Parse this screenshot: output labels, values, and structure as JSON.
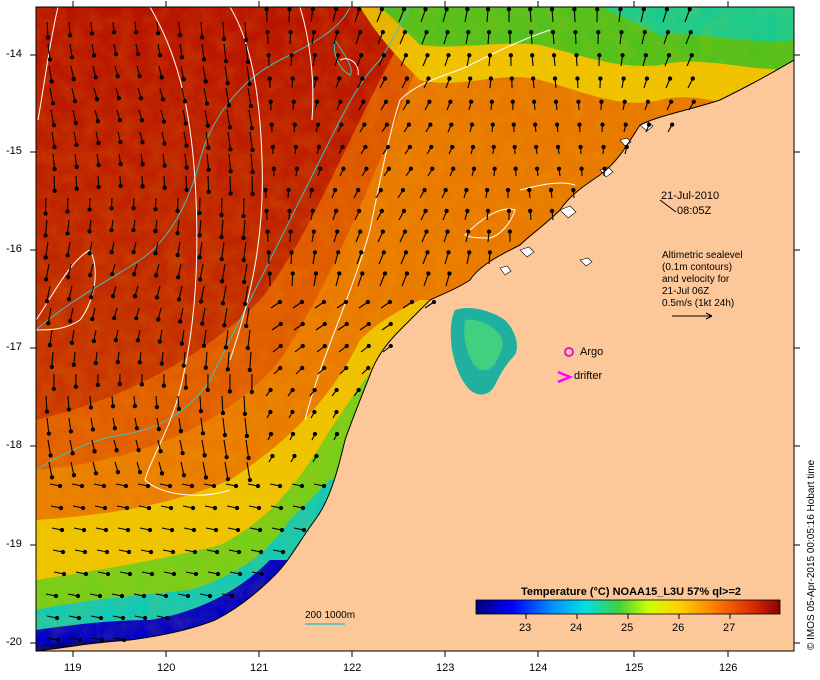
{
  "map": {
    "date_label": "21-Jul-2010",
    "time_label": "08:05Z",
    "altimetry_note": [
      "Altimetric sealevel",
      "(0.1m contours)",
      "and velocity for",
      "21-Jul 06Z",
      "0.5m/s (1kt 24h)"
    ],
    "argo_label": "Argo",
    "drifter_label": "drifter",
    "bathymetry_label": "200  1000m",
    "credit": "© IMOS 05-Apr-2015 00:05:16 Hobart time",
    "lat_ticks": [
      "-14",
      "-15",
      "-16",
      "-17",
      "-18",
      "-19",
      "-20"
    ],
    "lon_ticks": [
      "119",
      "120",
      "121",
      "122",
      "123",
      "124",
      "125",
      "126"
    ],
    "colors": {
      "land": "#fcc89a",
      "argo": "#d020d0",
      "drifter": "#ff00ff",
      "bathymetry": "#40c0c0",
      "contour": "#ffffff"
    }
  },
  "colorbar": {
    "title": "Temperature (°C) NOAA15_L3U 57% ql>=2",
    "ticks": [
      "23",
      "24",
      "25",
      "26",
      "27"
    ],
    "range": [
      22,
      28
    ],
    "stops": [
      "#00007a",
      "#0000ff",
      "#0090ff",
      "#00e0e0",
      "#40d040",
      "#d0ff00",
      "#ffd000",
      "#ff8000",
      "#e03000",
      "#900000"
    ]
  }
}
